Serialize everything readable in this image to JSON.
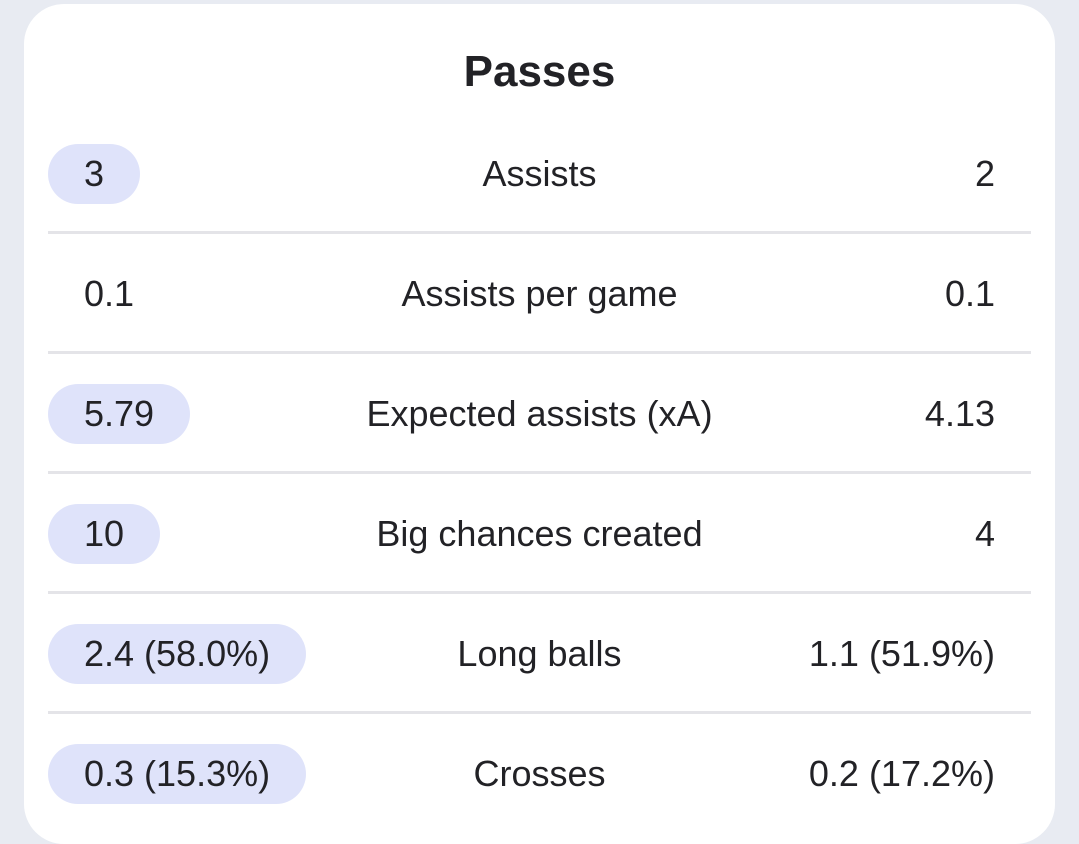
{
  "section": {
    "title": "Passes"
  },
  "colors": {
    "page_background": "#e8ebf2",
    "card_background": "#ffffff",
    "highlight": "#dfe3fa",
    "divider": "#e4e4e8",
    "text": "#222226"
  },
  "rows": [
    {
      "label": "Assists",
      "left": "3",
      "right": "2",
      "left_highlight": true
    },
    {
      "label": "Assists per game",
      "left": "0.1",
      "right": "0.1",
      "left_highlight": false
    },
    {
      "label": "Expected assists (xA)",
      "left": "5.79",
      "right": "4.13",
      "left_highlight": true
    },
    {
      "label": "Big chances created",
      "left": "10",
      "right": "4",
      "left_highlight": true
    },
    {
      "label": "Long balls",
      "left": "2.4 (58.0%)",
      "right": "1.1 (51.9%)",
      "left_highlight": true
    },
    {
      "label": "Crosses",
      "left": "0.3 (15.3%)",
      "right": "0.2 (17.2%)",
      "left_highlight": true
    }
  ]
}
